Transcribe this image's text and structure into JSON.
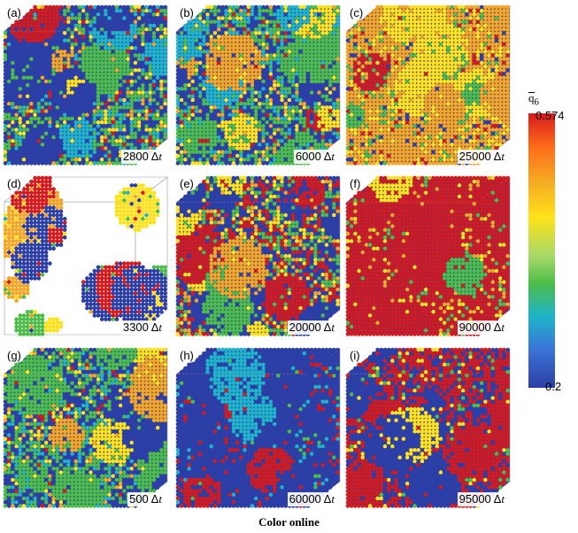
{
  "panels": [
    {
      "label": "(a)",
      "time": "2800",
      "style": "mixed"
    },
    {
      "label": "(b)",
      "time": "6000",
      "style": "mixed"
    },
    {
      "label": "(c)",
      "time": "25000",
      "style": "orange"
    },
    {
      "label": "(d)",
      "time": "3300",
      "style": "sparse"
    },
    {
      "label": "(e)",
      "time": "20000",
      "style": "redgrains"
    },
    {
      "label": "(f)",
      "time": "90000",
      "style": "red"
    },
    {
      "label": "(g)",
      "time": "500",
      "style": "mixed"
    },
    {
      "label": "(h)",
      "time": "60000",
      "style": "blue"
    },
    {
      "label": "(i)",
      "time": "95000",
      "style": "redblue"
    }
  ],
  "time_unit": "Δt",
  "colorbar": {
    "symbol": "q",
    "subscript": "6",
    "max": "0.574",
    "min": "0.2"
  },
  "caption": "Color online",
  "colors": {
    "red": "#d7191c",
    "orange": "#f5a623",
    "yellow": "#ffe21a",
    "green": "#4dbd4a",
    "cyan": "#1fb4c9",
    "blue": "#2c3fa6"
  }
}
